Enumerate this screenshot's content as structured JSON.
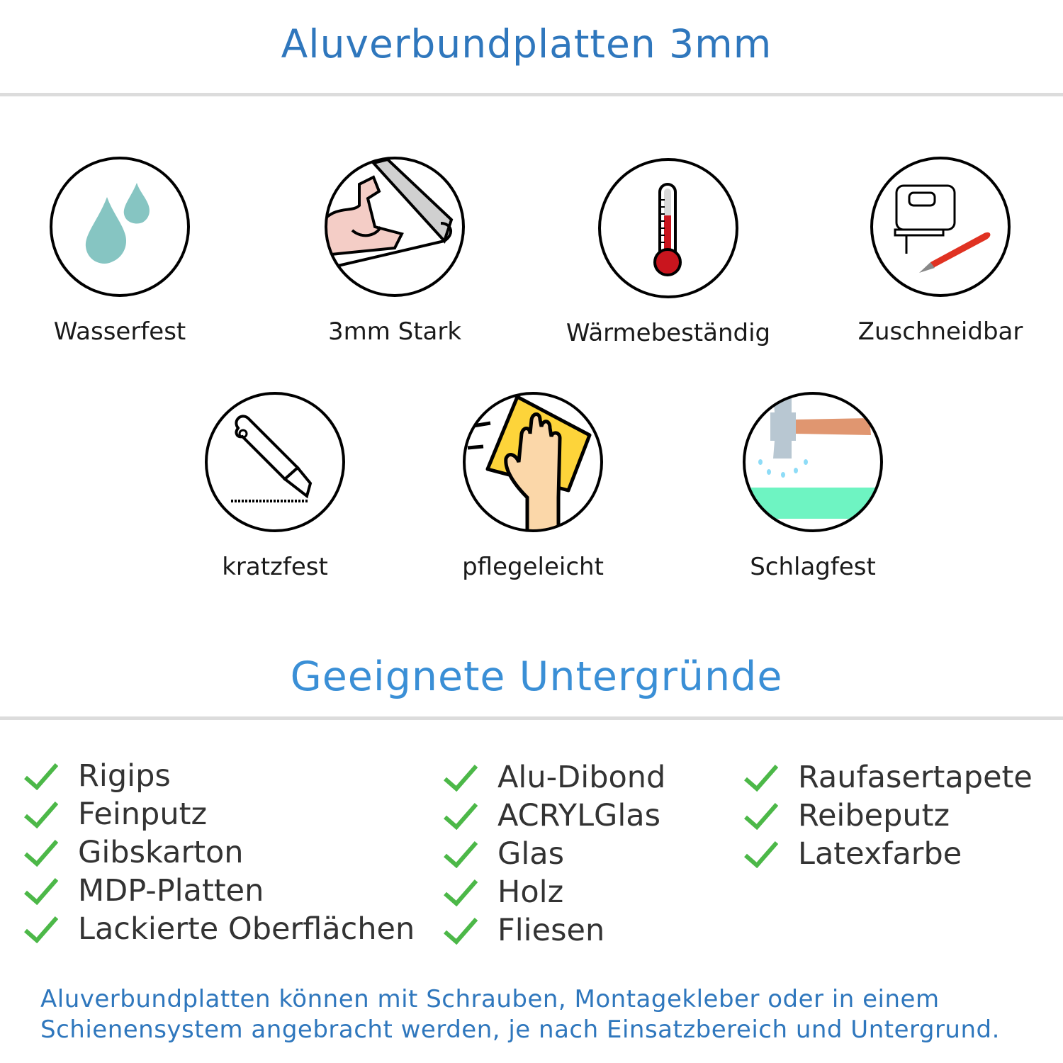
{
  "header": {
    "title": "Aluverbundplatten 3mm"
  },
  "features": [
    {
      "label": "Wasserfest",
      "icon": "water-drops-icon"
    },
    {
      "label": "3mm Stark",
      "icon": "muscle-arm-icon"
    },
    {
      "label": "Wärmebeständig",
      "icon": "thermometer-icon"
    },
    {
      "label": "Zuschneidbar",
      "icon": "jigsaw-knife-icon"
    },
    {
      "label": "kratzfest",
      "icon": "cutter-icon"
    },
    {
      "label": "pflegeleicht",
      "icon": "hand-sponge-icon"
    },
    {
      "label": "Schlagfest",
      "icon": "hammer-icon"
    }
  ],
  "surfaces": {
    "title": "Geeignete Untergründe",
    "columns": [
      [
        "Rigips",
        "Feinputz",
        "Gibskarton",
        "MDP-Platten",
        "Lackierte Oberflächen"
      ],
      [
        "Alu-Dibond",
        "ACRYLGlas",
        "Glas",
        "Holz",
        "Fliesen"
      ],
      [
        "Raufasertapete",
        "Reibeputz",
        "Latexfarbe"
      ]
    ]
  },
  "footer": {
    "lines": [
      "Aluverbundplatten können mit Schrauben, Montagekleber oder in einem",
      "Schienensystem angebracht werden, je nach Einsatzbereich und Untergrund."
    ]
  },
  "colors": {
    "title": "#2f77bd",
    "subtitle": "#3a8fd6",
    "check": "#4cb848",
    "divider": "#dcdcdc"
  }
}
